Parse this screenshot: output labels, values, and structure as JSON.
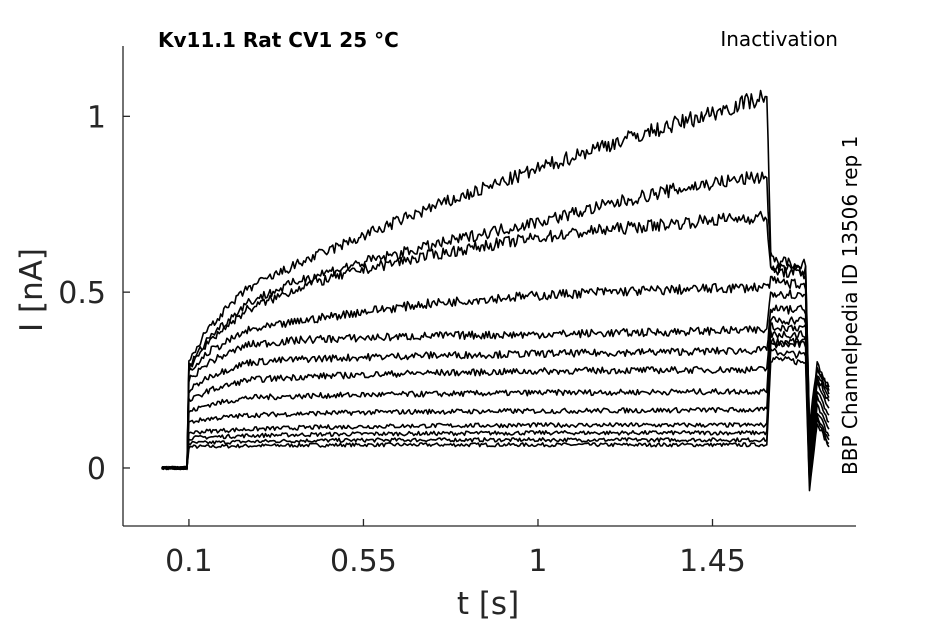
{
  "chart_data": {
    "type": "line",
    "title": "Kv11.1  Rat  CV1  25 °C",
    "annotation_top_right": "Inactivation",
    "annotation_right": "BBP Channelpedia ID 13506 rep 1",
    "xlabel": "t [s]",
    "ylabel": "I [nA]",
    "xlim": [
      -0.07,
      1.82
    ],
    "ylim": [
      -0.165,
      1.2
    ],
    "xticks": [
      0.1,
      0.55,
      1,
      1.45
    ],
    "xtick_labels": [
      "0.1",
      "0.55",
      "1",
      "1.45"
    ],
    "yticks": [
      0,
      0.5,
      1
    ],
    "ytick_labels": [
      "0",
      "0.5",
      "1"
    ],
    "grid": false,
    "line_color": "#000000",
    "time_points_s": [
      0.03,
      0.095,
      0.1,
      0.15,
      0.25,
      0.4,
      0.55,
      0.7,
      0.85,
      1.0,
      1.15,
      1.3,
      1.45,
      1.59,
      1.6,
      1.61,
      1.69,
      1.7,
      1.72,
      1.75
    ],
    "series": [
      {
        "values": [
          0.0,
          0.0,
          0.06,
          0.061,
          0.063,
          0.065,
          0.066,
          0.066,
          0.066,
          0.066,
          0.066,
          0.066,
          0.066,
          0.066,
          0.31,
          0.31,
          0.3,
          -0.06,
          0.13,
          0.06
        ]
      },
      {
        "values": [
          0.0,
          0.0,
          0.07,
          0.072,
          0.075,
          0.078,
          0.079,
          0.08,
          0.08,
          0.08,
          0.08,
          0.08,
          0.08,
          0.08,
          0.33,
          0.33,
          0.32,
          -0.05,
          0.14,
          0.07
        ]
      },
      {
        "values": [
          0.0,
          0.0,
          0.085,
          0.088,
          0.092,
          0.095,
          0.097,
          0.098,
          0.099,
          0.1,
          0.1,
          0.1,
          0.1,
          0.1,
          0.35,
          0.35,
          0.35,
          -0.04,
          0.15,
          0.08
        ]
      },
      {
        "values": [
          0.0,
          0.0,
          0.1,
          0.105,
          0.11,
          0.115,
          0.118,
          0.12,
          0.121,
          0.122,
          0.122,
          0.122,
          0.122,
          0.122,
          0.36,
          0.36,
          0.36,
          -0.03,
          0.16,
          0.09
        ]
      },
      {
        "values": [
          0.0,
          0.0,
          0.13,
          0.14,
          0.15,
          0.155,
          0.158,
          0.16,
          0.161,
          0.162,
          0.163,
          0.164,
          0.165,
          0.165,
          0.38,
          0.38,
          0.38,
          -0.02,
          0.18,
          0.11
        ]
      },
      {
        "values": [
          0.0,
          0.0,
          0.16,
          0.18,
          0.2,
          0.205,
          0.208,
          0.21,
          0.212,
          0.214,
          0.215,
          0.216,
          0.217,
          0.218,
          0.4,
          0.4,
          0.4,
          0.0,
          0.2,
          0.13
        ]
      },
      {
        "values": [
          0.0,
          0.0,
          0.19,
          0.22,
          0.25,
          0.26,
          0.265,
          0.27,
          0.272,
          0.275,
          0.277,
          0.278,
          0.279,
          0.28,
          0.42,
          0.42,
          0.42,
          0.02,
          0.22,
          0.15
        ]
      },
      {
        "values": [
          0.0,
          0.0,
          0.22,
          0.26,
          0.3,
          0.31,
          0.315,
          0.32,
          0.322,
          0.325,
          0.327,
          0.33,
          0.332,
          0.335,
          0.45,
          0.45,
          0.45,
          0.04,
          0.24,
          0.17
        ]
      },
      {
        "values": [
          0.0,
          0.0,
          0.25,
          0.3,
          0.35,
          0.365,
          0.37,
          0.375,
          0.378,
          0.38,
          0.383,
          0.386,
          0.39,
          0.392,
          0.5,
          0.5,
          0.49,
          0.06,
          0.26,
          0.19
        ]
      },
      {
        "values": [
          0.0,
          0.0,
          0.27,
          0.33,
          0.39,
          0.42,
          0.445,
          0.465,
          0.48,
          0.49,
          0.5,
          0.505,
          0.51,
          0.515,
          0.53,
          0.53,
          0.52,
          0.08,
          0.27,
          0.2
        ]
      },
      {
        "values": [
          0.0,
          0.0,
          0.28,
          0.36,
          0.45,
          0.52,
          0.565,
          0.6,
          0.63,
          0.655,
          0.675,
          0.69,
          0.705,
          0.715,
          0.56,
          0.56,
          0.55,
          0.1,
          0.28,
          0.21
        ]
      },
      {
        "values": [
          0.0,
          0.0,
          0.29,
          0.37,
          0.47,
          0.54,
          0.585,
          0.625,
          0.665,
          0.7,
          0.74,
          0.78,
          0.81,
          0.83,
          0.57,
          0.57,
          0.56,
          0.11,
          0.29,
          0.22
        ]
      },
      {
        "values": [
          0.0,
          0.0,
          0.3,
          0.4,
          0.51,
          0.59,
          0.66,
          0.73,
          0.79,
          0.85,
          0.91,
          0.96,
          1.01,
          1.06,
          0.6,
          0.59,
          0.58,
          0.12,
          0.3,
          0.23
        ]
      }
    ]
  }
}
